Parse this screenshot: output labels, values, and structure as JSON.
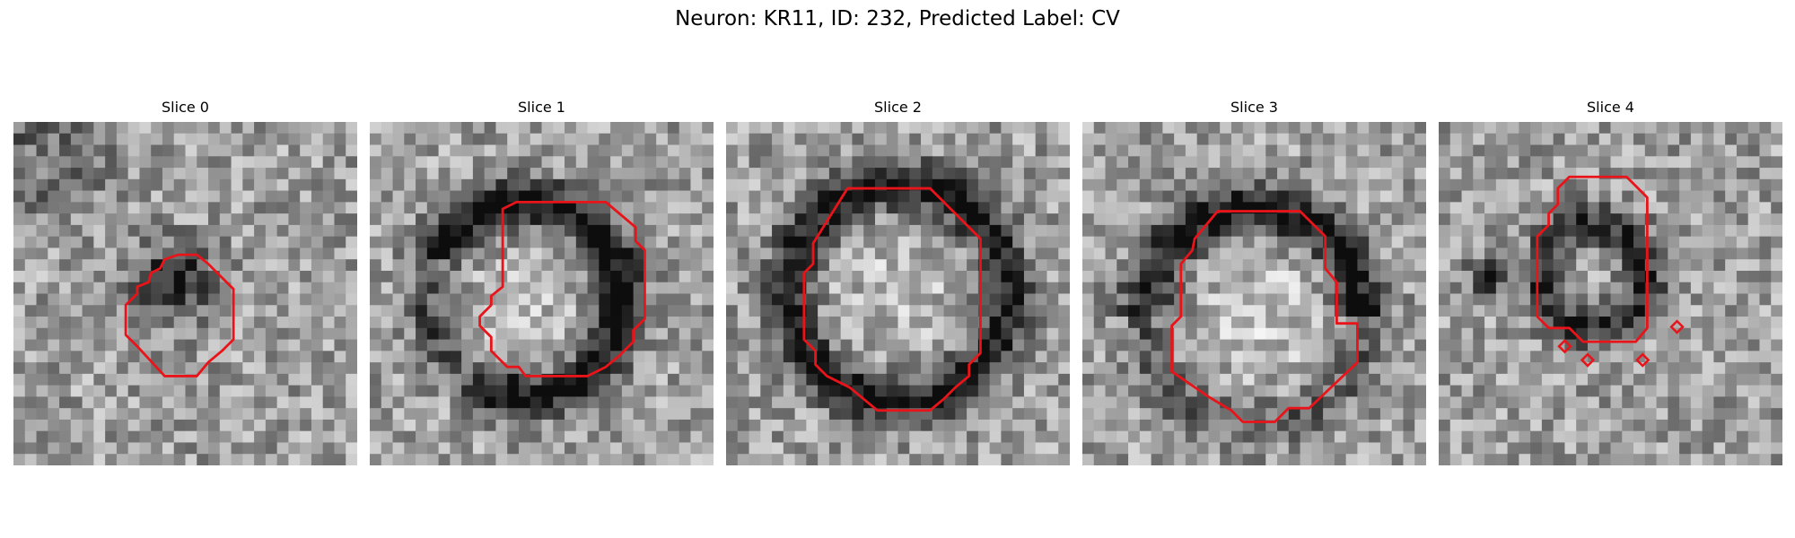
{
  "figure": {
    "suptitle": "Neuron: KR11, ID: 232, Predicted Label: CV",
    "contour_color": "#e8141a",
    "colormap": "grayscale",
    "panels": [
      {
        "title": "Slice 0",
        "seed": 11,
        "feature": "blob-small"
      },
      {
        "title": "Slice 1",
        "seed": 23,
        "feature": "ring-crescent"
      },
      {
        "title": "Slice 2",
        "seed": 37,
        "feature": "ring-full"
      },
      {
        "title": "Slice 3",
        "seed": 41,
        "feature": "ring-upper"
      },
      {
        "title": "Slice 4",
        "seed": 59,
        "feature": "ring-small"
      }
    ]
  }
}
